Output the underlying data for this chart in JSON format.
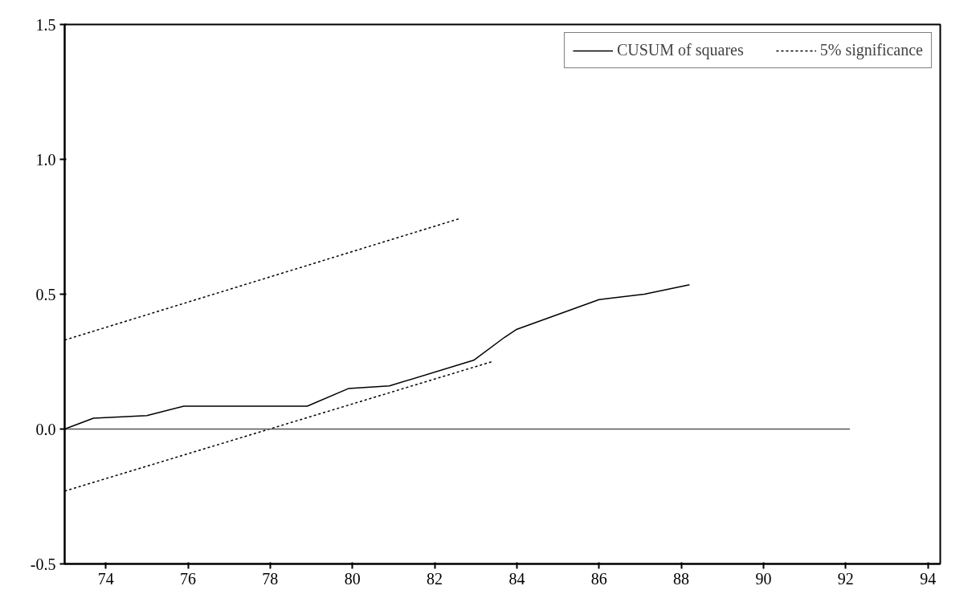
{
  "chart_data": {
    "type": "line",
    "series": [
      {
        "name": "CUSUM of squares",
        "color": "#000000",
        "line_style": "solid",
        "x": [
          73,
          73.7,
          75.0,
          75.9,
          78.9,
          79.9,
          80.9,
          82.95,
          83.7,
          84.0,
          86.0,
          87.1,
          88.2
        ],
        "values": [
          0.0,
          0.04,
          0.05,
          0.085,
          0.085,
          0.15,
          0.16,
          0.255,
          0.34,
          0.37,
          0.48,
          0.5,
          0.535
        ]
      },
      {
        "name": "5% significance",
        "color": "#000000",
        "line_style": "dashed",
        "x": [
          73,
          82.6
        ],
        "values": [
          0.33,
          0.78
        ]
      },
      {
        "color": "#000000",
        "line_style": "dashed",
        "x": [
          73,
          83.4
        ],
        "values": [
          -0.23,
          0.25
        ]
      },
      {
        "color": "#555555",
        "line_style": "solid",
        "x": [
          73,
          92.1
        ],
        "values": [
          0.0,
          0.0
        ]
      }
    ],
    "xlim": [
      73,
      94.3
    ],
    "xticks": [
      74,
      76,
      78,
      80,
      82,
      84,
      86,
      88,
      90,
      92,
      94
    ],
    "ylim": [
      -0.5,
      1.5
    ],
    "yticks": [
      {
        "value": -0.5,
        "label": "-0.5"
      },
      {
        "value": 0,
        "label": "0.0"
      },
      {
        "value": 0.5,
        "label": "0.5"
      },
      {
        "value": 1.0,
        "label": "1.0"
      },
      {
        "value": 1.5,
        "label": "1.5"
      }
    ],
    "grid": false,
    "legend": "top right",
    "marker": "none"
  }
}
